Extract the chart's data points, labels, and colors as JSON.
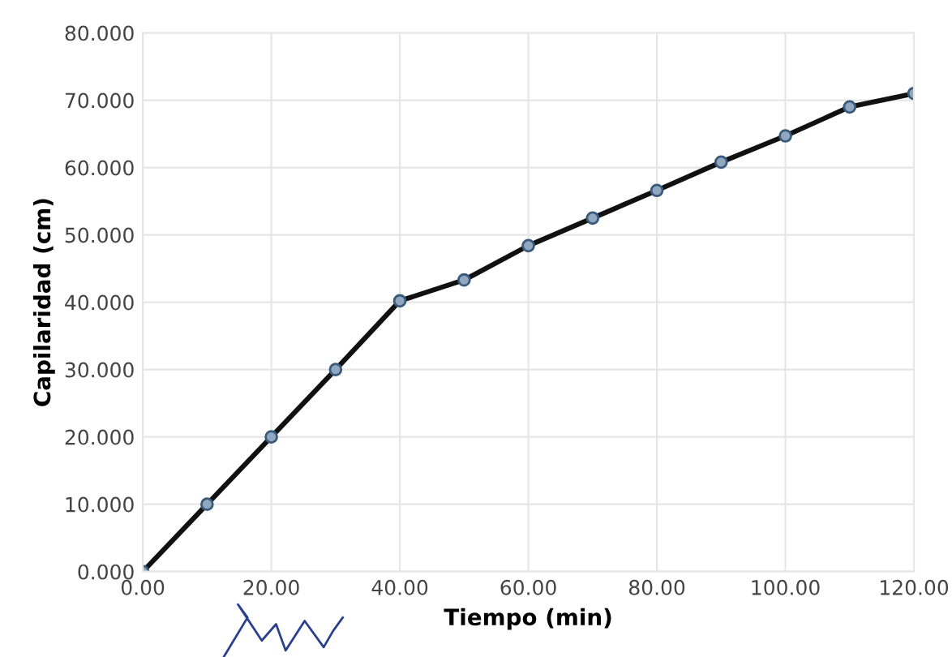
{
  "chart_data": {
    "type": "line",
    "xlabel": "Tiempo (min)",
    "ylabel": "Capilaridad (cm)",
    "x": [
      0,
      10,
      20,
      30,
      40,
      50,
      60,
      70,
      80,
      90,
      100,
      110,
      120
    ],
    "series": [
      {
        "color": "#111111",
        "values": [
          0,
          10,
          20,
          30,
          40.2,
          43.3,
          48.4,
          52.5,
          56.6,
          60.8,
          64.7,
          69,
          71
        ]
      }
    ],
    "xlim": [
      0,
      120
    ],
    "ylim": [
      0,
      80
    ],
    "xticks": [
      {
        "value": 0,
        "label": "0.00"
      },
      {
        "value": 20,
        "label": "20.00"
      },
      {
        "value": 40,
        "label": "40.00"
      },
      {
        "value": 60,
        "label": "60.00"
      },
      {
        "value": 80,
        "label": "80.00"
      },
      {
        "value": 100,
        "label": "100.00"
      },
      {
        "value": 120,
        "label": "120.00"
      }
    ],
    "yticks": [
      {
        "value": 0,
        "label": "0.000"
      },
      {
        "value": 10,
        "label": "10.000"
      },
      {
        "value": 20,
        "label": "20.000"
      },
      {
        "value": 30,
        "label": "30.000"
      },
      {
        "value": 40,
        "label": "40.000"
      },
      {
        "value": 50,
        "label": "50.000"
      },
      {
        "value": 60,
        "label": "60.000"
      },
      {
        "value": 70,
        "label": "70.000"
      },
      {
        "value": 80,
        "label": "80.000"
      }
    ],
    "grid": true,
    "marker": "circle",
    "line_style": "solid",
    "legend": false
  }
}
